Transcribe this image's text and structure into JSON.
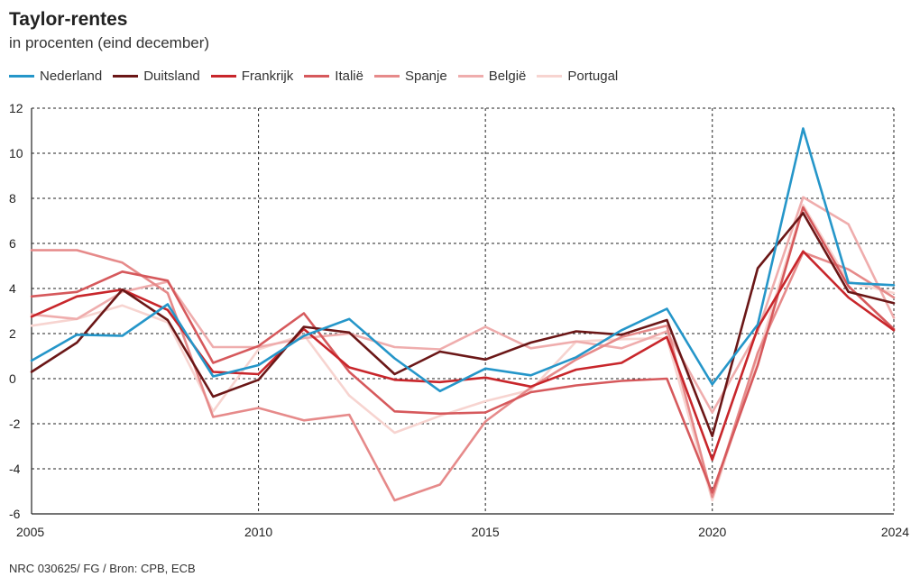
{
  "chart_data": {
    "type": "line",
    "title": "Taylor-rentes",
    "subtitle": "in procenten (eind december)",
    "xlabel": "",
    "ylabel": "",
    "xlim": [
      2005,
      2024
    ],
    "ylim": [
      -6,
      12
    ],
    "x": [
      2005,
      2006,
      2007,
      2008,
      2009,
      2010,
      2011,
      2012,
      2013,
      2014,
      2015,
      2016,
      2017,
      2018,
      2019,
      2020,
      2021,
      2022,
      2023,
      2024
    ],
    "x_ticks": [
      2005,
      2010,
      2015,
      2020,
      2024
    ],
    "y_ticks": [
      -6,
      -4,
      -2,
      0,
      2,
      4,
      6,
      8,
      10,
      12
    ],
    "grid": true,
    "legend_position": "top-left",
    "series": [
      {
        "name": "Nederland",
        "color": "#2596c9",
        "values": [
          0.8,
          1.95,
          1.9,
          3.3,
          0.1,
          0.6,
          1.9,
          2.65,
          0.9,
          -0.55,
          0.45,
          0.15,
          0.95,
          2.15,
          3.1,
          -0.25,
          2.4,
          11.1,
          4.25,
          4.15
        ]
      },
      {
        "name": "Duitsland",
        "color": "#6b1717",
        "values": [
          0.3,
          1.6,
          3.95,
          2.6,
          -0.8,
          -0.05,
          2.3,
          2.05,
          0.2,
          1.2,
          0.85,
          1.6,
          2.1,
          1.95,
          2.6,
          -2.55,
          4.9,
          7.35,
          3.85,
          3.35
        ]
      },
      {
        "name": "Frankrijk",
        "color": "#c8262b",
        "values": [
          2.75,
          3.65,
          3.95,
          3.05,
          0.3,
          0.2,
          2.2,
          0.5,
          -0.05,
          -0.15,
          0.05,
          -0.35,
          0.4,
          0.7,
          1.85,
          -3.6,
          2.25,
          5.65,
          3.6,
          2.15
        ]
      },
      {
        "name": "Italië",
        "color": "#d6595c",
        "values": [
          3.65,
          3.85,
          4.75,
          4.35,
          0.7,
          1.45,
          2.9,
          0.3,
          -1.45,
          -1.55,
          -1.5,
          -0.6,
          -0.3,
          -0.1,
          0.0,
          -5.05,
          0.6,
          7.6,
          4.1,
          2.2
        ]
      },
      {
        "name": "Spanje",
        "color": "#e68a8a",
        "values": [
          5.7,
          5.7,
          5.15,
          3.8,
          -1.7,
          -1.3,
          -1.85,
          -1.6,
          -5.4,
          -4.7,
          -1.9,
          -0.4,
          0.85,
          1.85,
          2.35,
          -5.25,
          1.15,
          5.6,
          4.85,
          3.6
        ]
      },
      {
        "name": "België",
        "color": "#efadad",
        "values": [
          2.85,
          2.65,
          3.85,
          4.3,
          1.4,
          1.4,
          1.8,
          2.0,
          1.4,
          1.3,
          2.3,
          1.35,
          1.65,
          1.35,
          2.1,
          -1.5,
          2.1,
          8.05,
          6.85,
          2.7
        ]
      },
      {
        "name": "Portugal",
        "color": "#f7d4d0",
        "values": [
          2.35,
          2.65,
          3.25,
          2.5,
          -1.45,
          1.3,
          1.95,
          -0.75,
          -2.4,
          -1.65,
          -1.0,
          -0.5,
          1.65,
          1.75,
          1.8,
          -5.4,
          1.0,
          7.7,
          4.3,
          3.8
        ]
      }
    ],
    "source": "NRC 030625/ FG / Bron: CPB, ECB"
  }
}
